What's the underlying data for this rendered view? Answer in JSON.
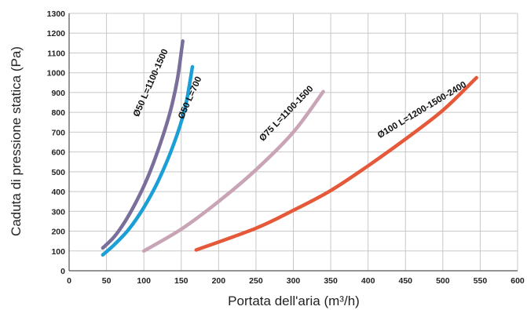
{
  "chart_data": {
    "type": "line",
    "xlabel": "Portata dell'aria (m³/h)",
    "ylabel": "Caduta di pressione statica (Pa)",
    "xlim": [
      0,
      600
    ],
    "ylim": [
      0,
      1300
    ],
    "x_ticks": [
      "0",
      "50",
      "100",
      "150",
      "200",
      "250",
      "300",
      "350",
      "400",
      "450",
      "500",
      "550",
      "600"
    ],
    "y_ticks": [
      "0",
      "100",
      "200",
      "300",
      "400",
      "500",
      "600",
      "700",
      "800",
      "900",
      "1000",
      "1100",
      "1200",
      "1300"
    ],
    "grid": true,
    "series": [
      {
        "name": "Ø50 L=1100-1500",
        "color": "#7a6e9a",
        "points": [
          [
            45,
            115
          ],
          [
            60,
            170
          ],
          [
            75,
            250
          ],
          [
            90,
            350
          ],
          [
            105,
            470
          ],
          [
            120,
            620
          ],
          [
            135,
            800
          ],
          [
            145,
            970
          ],
          [
            152,
            1160
          ]
        ]
      },
      {
        "name": "Ø50 L=700",
        "color": "#1a9fd6",
        "points": [
          [
            45,
            80
          ],
          [
            60,
            130
          ],
          [
            80,
            210
          ],
          [
            100,
            320
          ],
          [
            120,
            460
          ],
          [
            140,
            640
          ],
          [
            155,
            820
          ],
          [
            165,
            1030
          ]
        ]
      },
      {
        "name": "Ø75 L=1100-1500",
        "color": "#c9a3b6",
        "points": [
          [
            100,
            100
          ],
          [
            150,
            210
          ],
          [
            200,
            350
          ],
          [
            250,
            510
          ],
          [
            300,
            700
          ],
          [
            340,
            905
          ]
        ]
      },
      {
        "name": "Ø100 L=1200-1500-2400",
        "color": "#e5593a",
        "points": [
          [
            170,
            105
          ],
          [
            250,
            215
          ],
          [
            300,
            305
          ],
          [
            350,
            405
          ],
          [
            400,
            530
          ],
          [
            450,
            665
          ],
          [
            500,
            810
          ],
          [
            545,
            975
          ]
        ]
      }
    ]
  }
}
